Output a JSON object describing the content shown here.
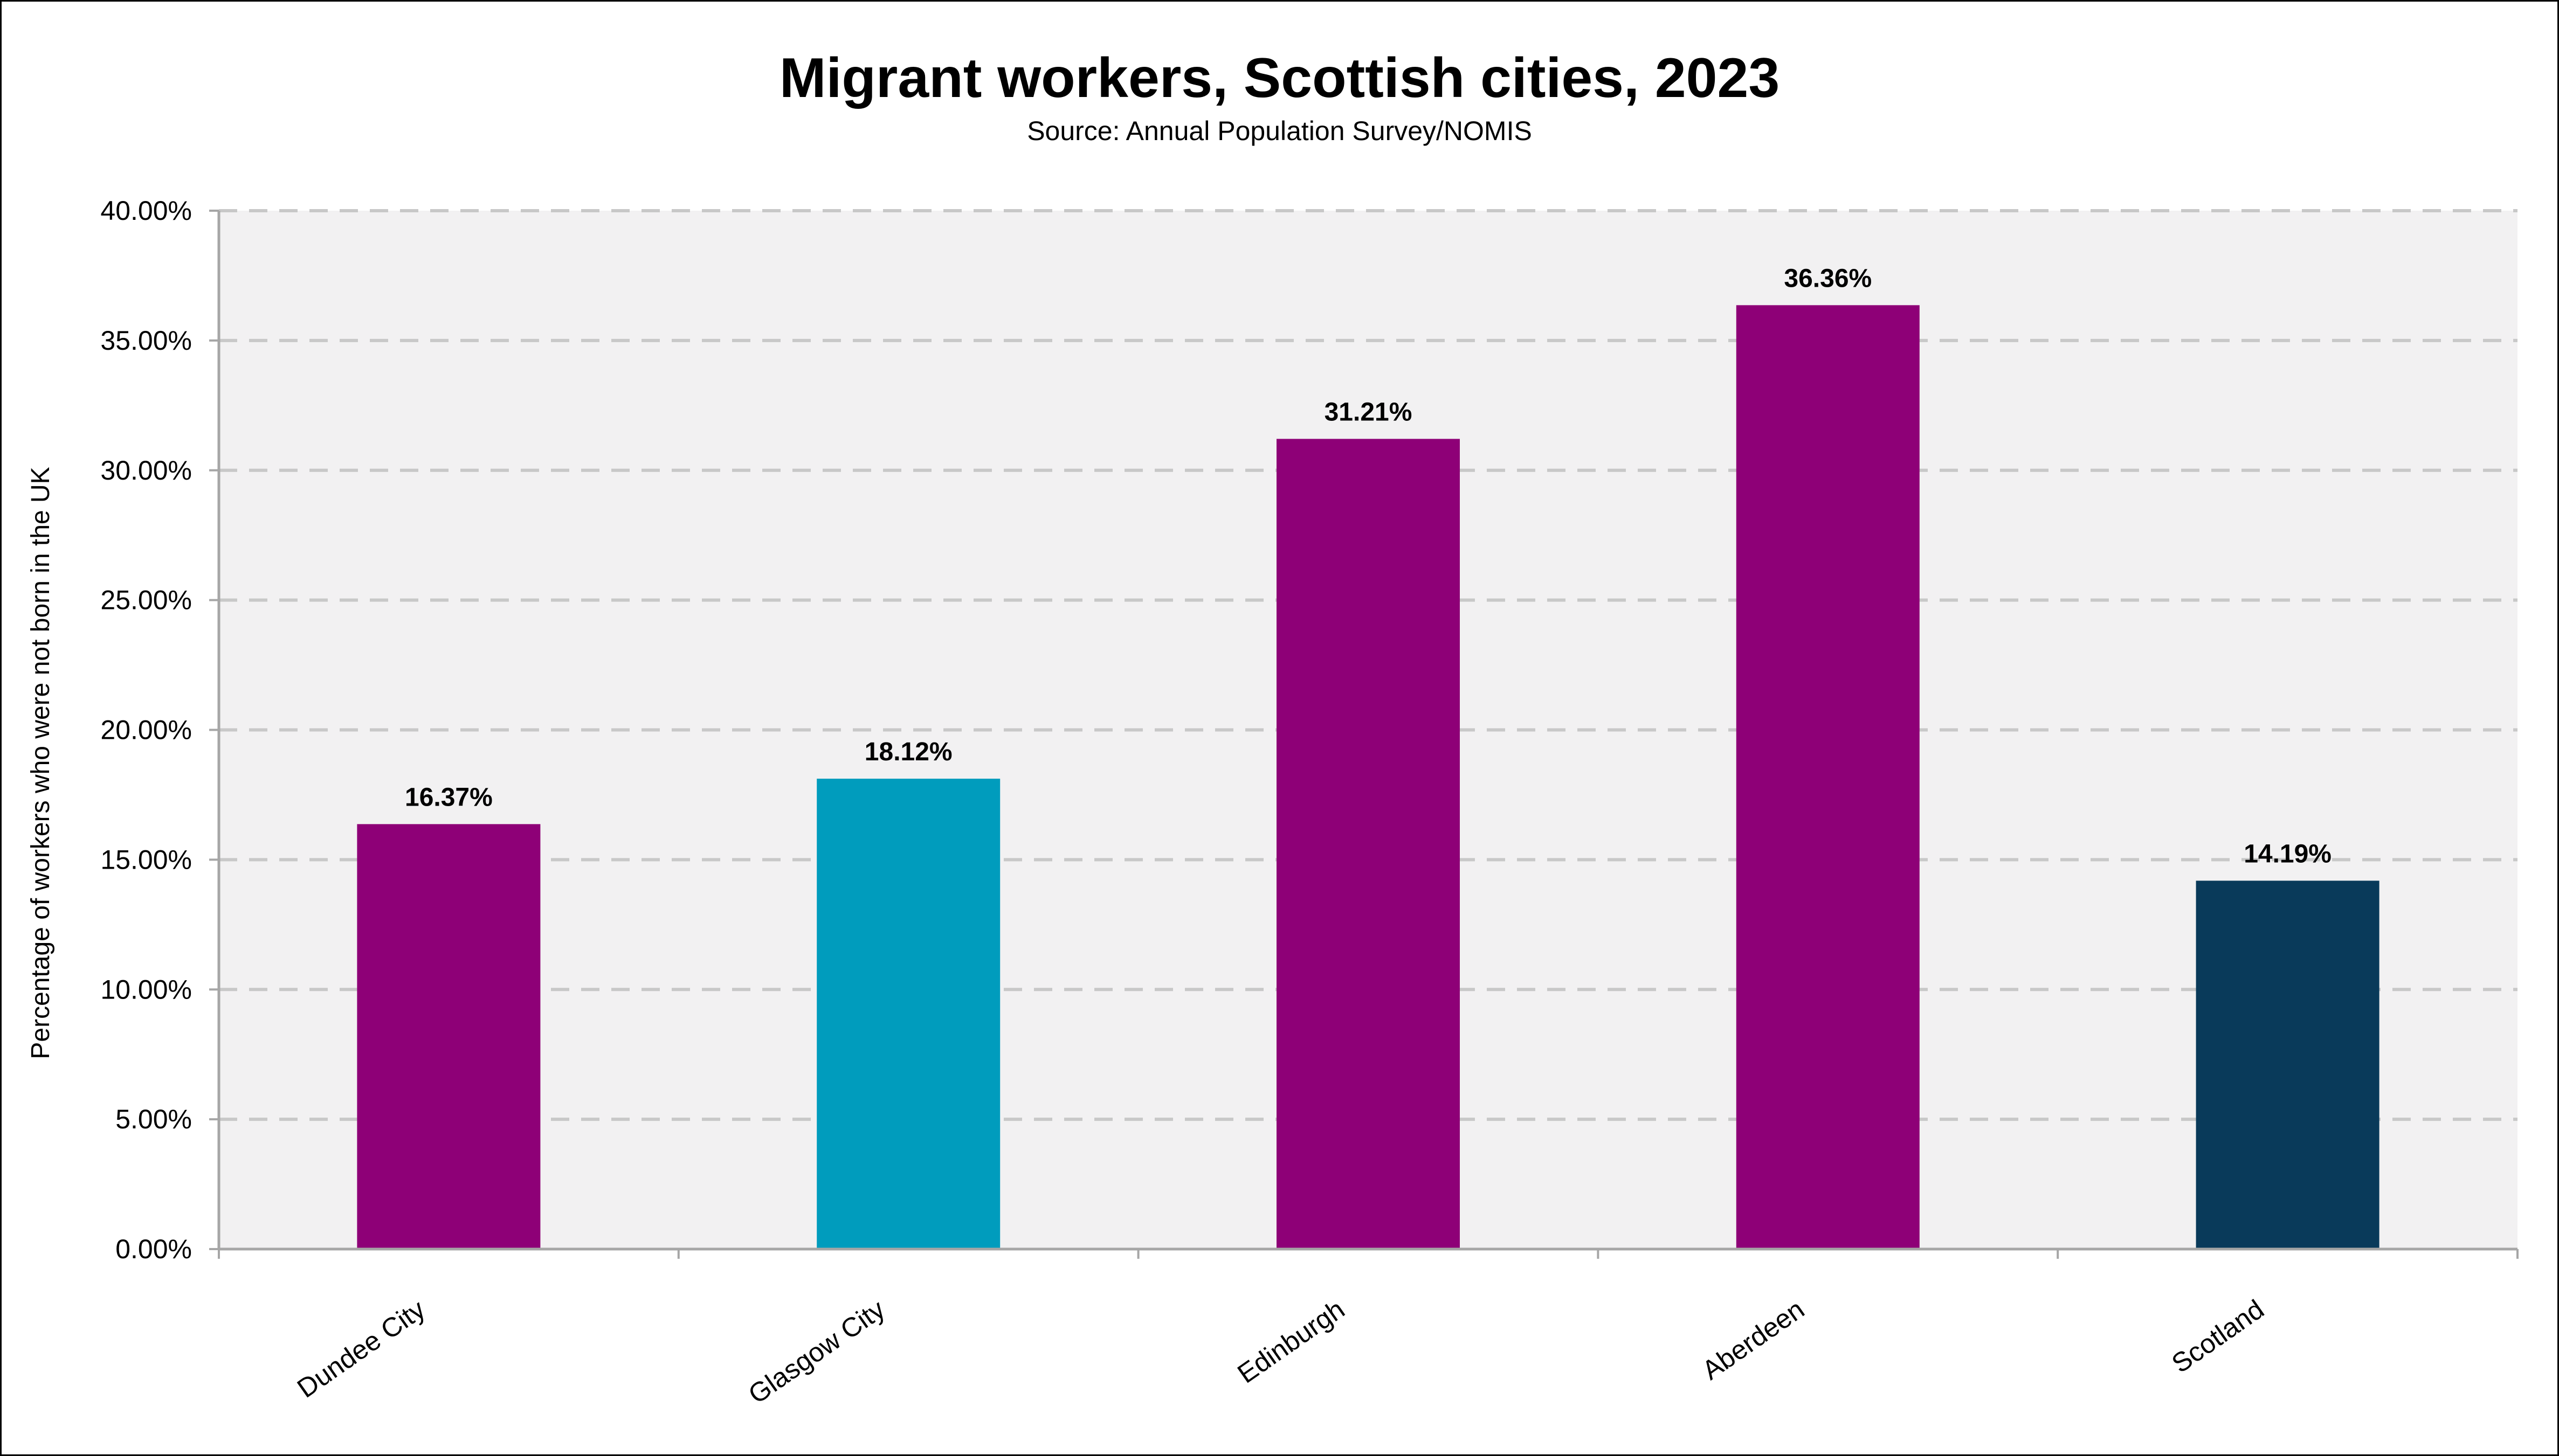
{
  "chart_data": {
    "type": "bar",
    "title": "Migrant workers, Scottish cities, 2023",
    "subtitle": "Source: Annual Population Survey/NOMIS",
    "xlabel": "",
    "ylabel": "Percentage of workers who were not born in the UK",
    "categories": [
      "Dundee City",
      "Glasgow City",
      "Edinburgh",
      "Aberdeen",
      "Scotland"
    ],
    "values": [
      16.37,
      18.12,
      31.21,
      36.36,
      14.19
    ],
    "data_labels": [
      "16.37%",
      "18.12%",
      "31.21%",
      "36.36%",
      "14.19%"
    ],
    "bar_colors": [
      "#8e0077",
      "#009cbd",
      "#8e0077",
      "#8e0077",
      "#093a5a"
    ],
    "ylim": [
      0,
      40
    ],
    "yticks": [
      0,
      5,
      10,
      15,
      20,
      25,
      30,
      35,
      40
    ],
    "ytick_labels": [
      "0.00%",
      "5.00%",
      "10.00%",
      "15.00%",
      "20.00%",
      "25.00%",
      "30.00%",
      "35.00%",
      "40.00%"
    ],
    "grid": true,
    "grid_style": "dashed",
    "legend": "none",
    "plot_background": "#f2f1f2",
    "gridline_color": "#c8c8c8",
    "axis_color": "#a6a6a6"
  }
}
